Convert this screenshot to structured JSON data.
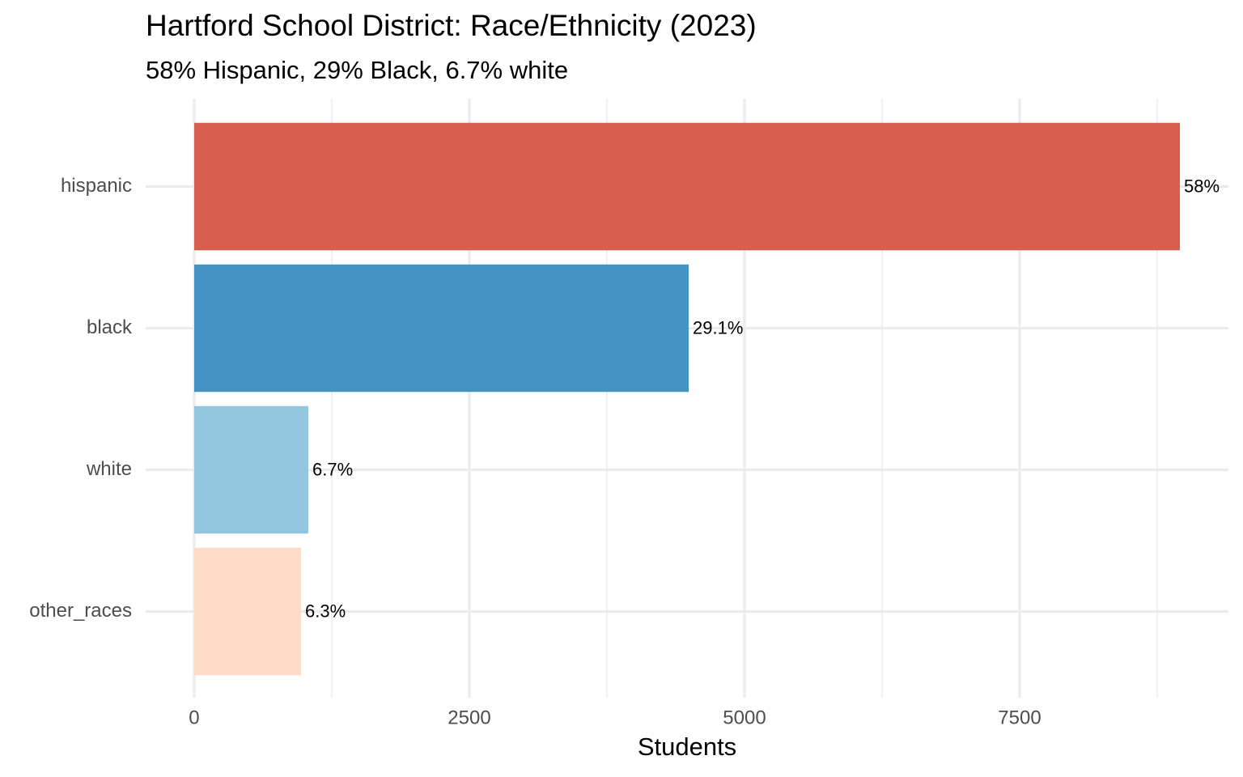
{
  "chart_data": {
    "type": "bar",
    "orientation": "horizontal",
    "title": "Hartford School District: Race/Ethnicity (2023)",
    "subtitle": "58% Hispanic, 29% Black, 6.7% white",
    "x_label": "Students",
    "categories": [
      "hispanic",
      "black",
      "white",
      "other_races"
    ],
    "values": [
      8956,
      4493,
      1037,
      971
    ],
    "value_labels": [
      "58%",
      "29.1%",
      "6.7%",
      "6.3%"
    ],
    "colors": [
      "#d6604d",
      "#4393c3",
      "#92c5de",
      "#fddbc7"
    ],
    "xlim": [
      -441,
      9397
    ],
    "xticks": [
      0,
      2500,
      5000,
      7500
    ],
    "minor_xticks": [
      1250,
      3750,
      6250,
      8750
    ],
    "grid": true
  }
}
